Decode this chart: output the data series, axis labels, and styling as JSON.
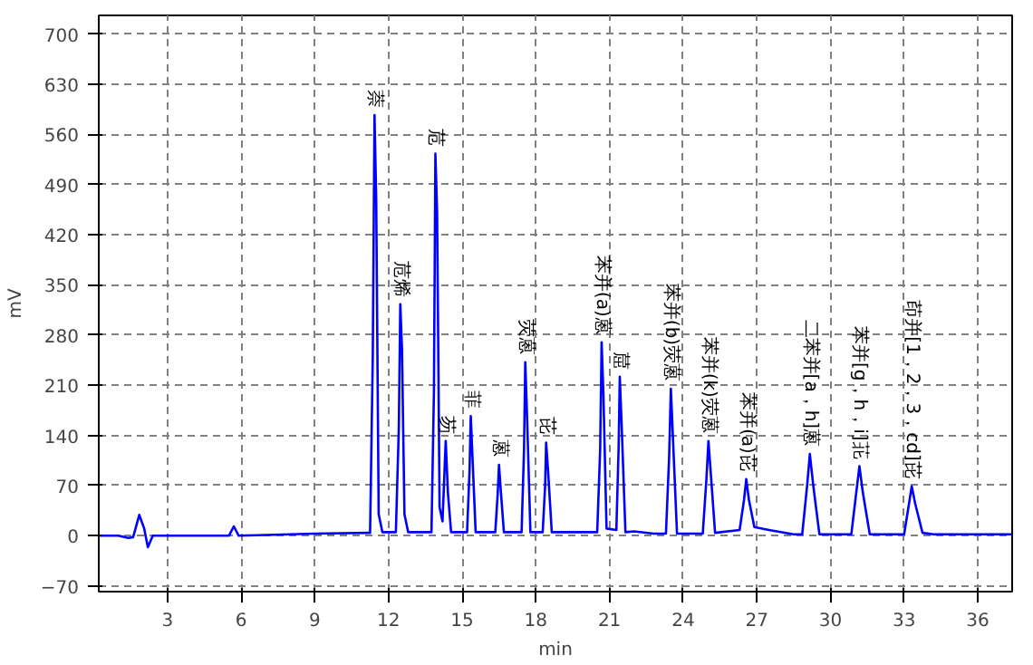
{
  "chart_data": {
    "type": "line",
    "xlabel": "min",
    "ylabel": "mV",
    "xlim": [
      0.2,
      37.4
    ],
    "ylim": [
      -78,
      726
    ],
    "xticks": [
      3,
      6,
      9,
      12,
      15,
      18,
      21,
      24,
      27,
      30,
      33,
      36
    ],
    "yticks": [
      -70,
      0,
      70,
      140,
      210,
      280,
      350,
      420,
      490,
      560,
      630,
      700
    ],
    "grid": true,
    "line_style": "solid",
    "series": [
      {
        "color": "#0000ff",
        "x": [
          0.2,
          1.0,
          1.4,
          1.6,
          1.85,
          2.05,
          2.2,
          2.4,
          5.5,
          5.7,
          5.9,
          7,
          9,
          11.2,
          11.25,
          11.36,
          11.43,
          11.5,
          11.6,
          11.75,
          12.3,
          12.42,
          12.48,
          12.55,
          12.65,
          12.8,
          13.75,
          13.85,
          13.91,
          13.98,
          14.08,
          14.2,
          14.33,
          14.42,
          14.55,
          15.2,
          15.3,
          15.35,
          15.42,
          15.55,
          16.35,
          16.45,
          16.5,
          16.58,
          16.7,
          17.42,
          17.52,
          17.57,
          17.64,
          17.78,
          18.28,
          18.38,
          18.42,
          18.5,
          18.65,
          20.5,
          20.62,
          20.68,
          20.75,
          20.88,
          21.28,
          21.37,
          21.42,
          21.5,
          21.65,
          22,
          22.8,
          23.3,
          23.43,
          23.5,
          23.58,
          23.75,
          24.8,
          24.95,
          25.03,
          25.12,
          25.3,
          26.3,
          26.48,
          26.57,
          26.68,
          26.9,
          27.5,
          28.5,
          28.85,
          29.05,
          29.16,
          29.3,
          29.55,
          30.85,
          31.05,
          31.18,
          31.32,
          31.6,
          33.0,
          33.2,
          33.31,
          33.45,
          33.75,
          34.2,
          37.4
        ],
        "values": [
          0,
          0,
          -3,
          -2,
          29,
          10,
          -16,
          0,
          0,
          13,
          0,
          1,
          3,
          4,
          4,
          250,
          587,
          470,
          30,
          5,
          5,
          150,
          323,
          260,
          30,
          5,
          5,
          200,
          533,
          450,
          40,
          20,
          132,
          60,
          5,
          5,
          90,
          167,
          110,
          5,
          5,
          60,
          99,
          60,
          5,
          5,
          120,
          242,
          170,
          5,
          5,
          70,
          130,
          90,
          5,
          5,
          120,
          270,
          200,
          10,
          8,
          120,
          222,
          150,
          5,
          6,
          3,
          3,
          110,
          205,
          140,
          3,
          3,
          80,
          132,
          90,
          4,
          8,
          50,
          79,
          50,
          12,
          8,
          2,
          2,
          70,
          114,
          70,
          2,
          2,
          60,
          97,
          60,
          2,
          2,
          45,
          69,
          45,
          4,
          2,
          2
        ]
      }
    ],
    "annotations": [
      {
        "text": "萘",
        "x": 11.43,
        "y": 587
      },
      {
        "text": "苊烯",
        "x": 12.48,
        "y": 323
      },
      {
        "text": "苊",
        "x": 13.91,
        "y": 533
      },
      {
        "text": "芴",
        "x": 14.33,
        "y": 132
      },
      {
        "text": "菲",
        "x": 15.35,
        "y": 167
      },
      {
        "text": "蒽",
        "x": 16.5,
        "y": 99
      },
      {
        "text": "荧蒽",
        "x": 17.57,
        "y": 242
      },
      {
        "text": "芘",
        "x": 18.42,
        "y": 130
      },
      {
        "text": "苯并(a)蒽",
        "x": 20.68,
        "y": 270
      },
      {
        "text": "䓛",
        "x": 21.42,
        "y": 222
      },
      {
        "text": "苯并(b)荧蒽",
        "x": 23.5,
        "y": 205
      },
      {
        "text": "苯并(k)荧蒽",
        "x": 25.03,
        "y": 132
      },
      {
        "text": "苯并(a)芘",
        "x": 26.57,
        "y": 79
      },
      {
        "text": "二苯并[a，h]蒽",
        "x": 29.16,
        "y": 114
      },
      {
        "text": "苯并[g，h，i]苝",
        "x": 31.18,
        "y": 97
      },
      {
        "text": "茚并[1，2，3，cd]芘",
        "x": 33.31,
        "y": 69
      }
    ]
  }
}
